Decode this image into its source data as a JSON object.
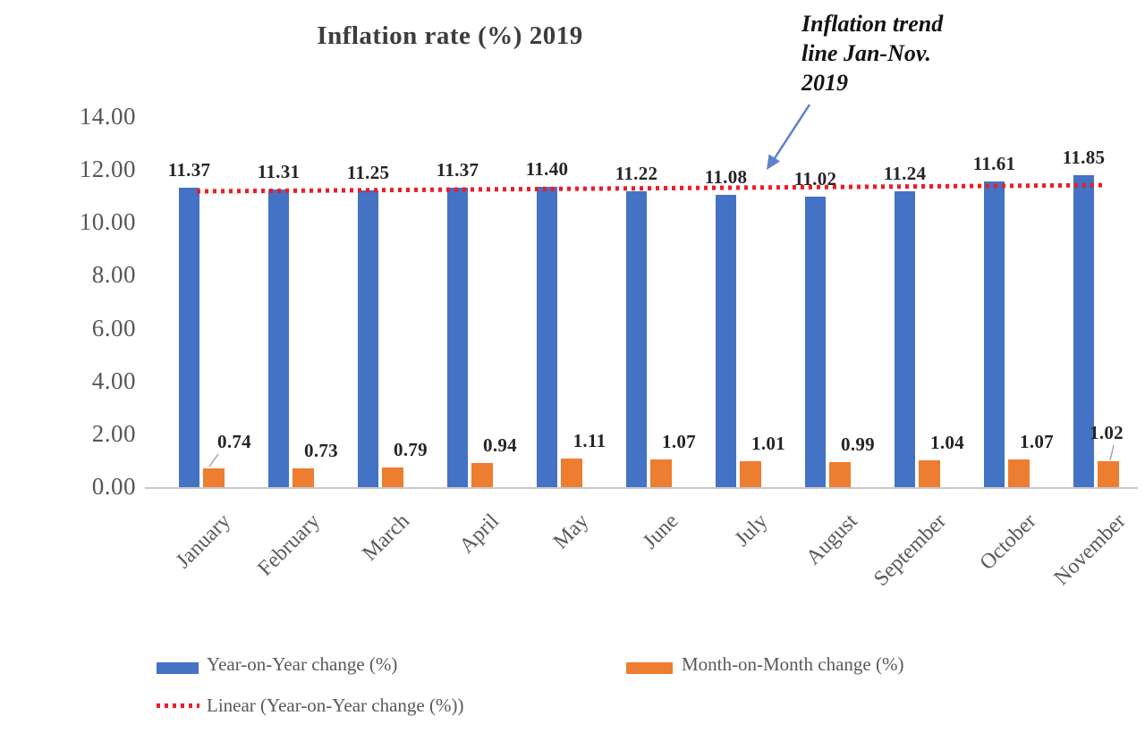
{
  "title": "Inflation rate (%) 2019",
  "annotation": {
    "text": "Inflation trend line Jan-Nov. 2019",
    "lines": [
      "Inflation trend",
      "line Jan-Nov.",
      "2019"
    ]
  },
  "y_axis": {
    "tick_labels": [
      "0.00",
      "2.00",
      "4.00",
      "6.00",
      "8.00",
      "10.00",
      "12.00",
      "14.00"
    ]
  },
  "chart_data": {
    "type": "bar",
    "title": "Inflation rate (%) 2019",
    "categories": [
      "January",
      "February",
      "March",
      "April",
      "May",
      "June",
      "July",
      "August",
      "September",
      "October",
      "November"
    ],
    "series": [
      {
        "name": "Year-on-Year change (%)",
        "color": "#4472C4",
        "values": [
          11.37,
          11.31,
          11.25,
          11.37,
          11.4,
          11.22,
          11.08,
          11.02,
          11.24,
          11.61,
          11.85
        ]
      },
      {
        "name": "Month-on-Month change (%)",
        "color": "#ED7D31",
        "values": [
          0.74,
          0.73,
          0.79,
          0.94,
          1.11,
          1.07,
          1.01,
          0.99,
          1.04,
          1.07,
          1.02
        ]
      }
    ],
    "trendline": {
      "name": "Linear (Year-on-Year change (%))",
      "applies_to": "Year-on-Year change (%)",
      "color": "#EE1C25",
      "style": "dotted"
    },
    "ylim": [
      0,
      14
    ],
    "ytick_step": 2,
    "grid": false,
    "legend_position": "bottom",
    "value_labels": true,
    "value_label_format": "0.00"
  },
  "legend": {
    "items": [
      {
        "label": "Year-on-Year change (%)",
        "color": "#4472C4",
        "type": "bar"
      },
      {
        "label": "Month-on-Month change (%)",
        "color": "#ED7D31",
        "type": "bar"
      },
      {
        "label": "Linear (Year-on-Year change (%))",
        "color": "#EE1C25",
        "type": "dotted-line"
      }
    ]
  },
  "annotation_arrow_color": "#5b83c9"
}
